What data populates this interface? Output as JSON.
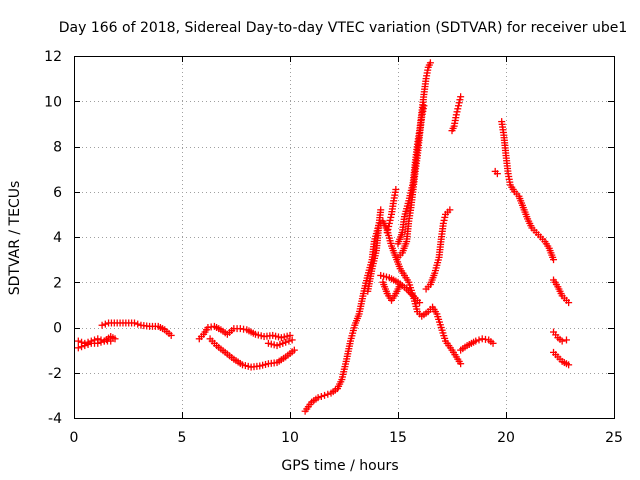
{
  "chart_data": {
    "type": "scatter",
    "title": "Day 166 of 2018, Sidereal Day-to-day VTEC variation (SDTVAR) for receiver ube1",
    "xlabel": "GPS time / hours",
    "ylabel": "SDTVAR / TECUs",
    "xlim": [
      0,
      25
    ],
    "ylim": [
      -4,
      12
    ],
    "xticks": [
      0,
      5,
      10,
      15,
      20,
      25
    ],
    "yticks": [
      -4,
      -2,
      0,
      2,
      4,
      6,
      8,
      10,
      12
    ],
    "grid": true,
    "marker": "plus",
    "color": "#ff0000",
    "series": [
      {
        "name": "s1",
        "points": [
          [
            0.2,
            -0.6
          ],
          [
            0.5,
            -0.7
          ],
          [
            0.8,
            -0.6
          ],
          [
            1.1,
            -0.5
          ],
          [
            1.4,
            -0.6
          ],
          [
            1.7,
            -0.4
          ],
          [
            1.9,
            -0.5
          ]
        ]
      },
      {
        "name": "s2",
        "points": [
          [
            0.2,
            -0.9
          ],
          [
            0.5,
            -0.8
          ],
          [
            0.8,
            -0.7
          ],
          [
            1.1,
            -0.7
          ],
          [
            1.4,
            -0.6
          ],
          [
            1.7,
            -0.6
          ]
        ]
      },
      {
        "name": "s3",
        "points": [
          [
            1.3,
            0.1
          ],
          [
            1.6,
            0.2
          ],
          [
            2.0,
            0.2
          ],
          [
            2.4,
            0.2
          ],
          [
            2.8,
            0.2
          ],
          [
            3.1,
            0.1
          ],
          [
            3.5,
            0.05
          ],
          [
            3.9,
            0.05
          ],
          [
            4.2,
            -0.1
          ],
          [
            4.5,
            -0.35
          ]
        ]
      },
      {
        "name": "s4",
        "points": [
          [
            5.8,
            -0.5
          ],
          [
            6.0,
            -0.3
          ],
          [
            6.2,
            0.0
          ],
          [
            6.5,
            0.05
          ],
          [
            6.8,
            -0.1
          ],
          [
            7.1,
            -0.3
          ],
          [
            7.4,
            -0.05
          ],
          [
            7.7,
            -0.05
          ],
          [
            8.0,
            -0.1
          ],
          [
            8.4,
            -0.3
          ],
          [
            8.8,
            -0.4
          ],
          [
            9.2,
            -0.35
          ],
          [
            9.6,
            -0.45
          ],
          [
            10.0,
            -0.35
          ]
        ]
      },
      {
        "name": "s5",
        "points": [
          [
            6.3,
            -0.5
          ],
          [
            6.6,
            -0.8
          ],
          [
            7.0,
            -1.1
          ],
          [
            7.4,
            -1.4
          ],
          [
            7.8,
            -1.65
          ],
          [
            8.2,
            -1.75
          ],
          [
            8.6,
            -1.7
          ],
          [
            9.0,
            -1.6
          ],
          [
            9.4,
            -1.55
          ],
          [
            9.8,
            -1.3
          ],
          [
            10.2,
            -1.0
          ]
        ]
      },
      {
        "name": "s6",
        "points": [
          [
            9.0,
            -0.7
          ],
          [
            9.4,
            -0.8
          ],
          [
            9.8,
            -0.65
          ],
          [
            10.1,
            -0.55
          ]
        ]
      },
      {
        "name": "s7",
        "points": [
          [
            10.7,
            -3.7
          ],
          [
            11.0,
            -3.3
          ],
          [
            11.3,
            -3.1
          ],
          [
            11.6,
            -3.0
          ],
          [
            11.9,
            -2.9
          ],
          [
            12.2,
            -2.7
          ],
          [
            12.4,
            -2.3
          ],
          [
            12.6,
            -1.5
          ],
          [
            12.8,
            -0.6
          ],
          [
            13.0,
            0.1
          ],
          [
            13.2,
            0.6
          ],
          [
            13.4,
            1.5
          ],
          [
            13.6,
            2.3
          ],
          [
            13.8,
            3.0
          ],
          [
            13.9,
            3.8
          ],
          [
            14.1,
            4.5
          ],
          [
            14.3,
            4.7
          ],
          [
            14.5,
            4.3
          ],
          [
            14.7,
            3.6
          ],
          [
            14.9,
            3.1
          ],
          [
            15.1,
            2.6
          ],
          [
            15.3,
            2.3
          ],
          [
            15.5,
            2.0
          ],
          [
            15.7,
            1.4
          ],
          [
            15.9,
            0.7
          ],
          [
            16.1,
            0.5
          ],
          [
            16.4,
            0.7
          ],
          [
            16.6,
            0.9
          ],
          [
            16.8,
            0.6
          ],
          [
            17.0,
            0.0
          ],
          [
            17.2,
            -0.6
          ],
          [
            17.5,
            -1.0
          ],
          [
            17.7,
            -1.3
          ],
          [
            17.9,
            -1.6
          ]
        ]
      },
      {
        "name": "s8",
        "points": [
          [
            13.6,
            1.6
          ],
          [
            13.8,
            2.6
          ],
          [
            14.0,
            3.4
          ],
          [
            14.1,
            4.4
          ],
          [
            14.2,
            5.2
          ]
        ]
      },
      {
        "name": "s9",
        "points": [
          [
            14.2,
            2.3
          ],
          [
            14.6,
            2.2
          ],
          [
            15.0,
            2.0
          ],
          [
            15.4,
            1.7
          ],
          [
            15.8,
            1.3
          ],
          [
            16.0,
            1.1
          ]
        ]
      },
      {
        "name": "s10",
        "points": [
          [
            14.3,
            2.0
          ],
          [
            14.5,
            1.5
          ],
          [
            14.7,
            1.2
          ],
          [
            14.9,
            1.5
          ],
          [
            15.1,
            1.9
          ]
        ]
      },
      {
        "name": "s11",
        "points": [
          [
            14.5,
            4.2
          ],
          [
            14.6,
            4.6
          ],
          [
            14.7,
            5.0
          ],
          [
            14.8,
            5.6
          ],
          [
            14.9,
            6.1
          ]
        ]
      },
      {
        "name": "s12",
        "points": [
          [
            15.0,
            3.7
          ],
          [
            15.2,
            4.2
          ],
          [
            15.3,
            4.9
          ],
          [
            15.5,
            5.6
          ],
          [
            15.7,
            6.4
          ],
          [
            15.8,
            7.3
          ],
          [
            15.9,
            8.1
          ],
          [
            16.0,
            8.7
          ],
          [
            16.1,
            9.5
          ],
          [
            16.2,
            10.3
          ],
          [
            16.3,
            11.0
          ],
          [
            16.4,
            11.5
          ],
          [
            16.5,
            11.7
          ]
        ]
      },
      {
        "name": "s13",
        "points": [
          [
            15.0,
            3.1
          ],
          [
            15.2,
            3.3
          ],
          [
            15.4,
            3.8
          ],
          [
            15.5,
            4.7
          ],
          [
            15.6,
            5.3
          ],
          [
            15.7,
            6.1
          ],
          [
            15.8,
            6.9
          ],
          [
            15.9,
            7.6
          ],
          [
            16.0,
            8.5
          ],
          [
            16.1,
            9.3
          ],
          [
            16.2,
            9.8
          ]
        ]
      },
      {
        "name": "s14",
        "points": [
          [
            16.3,
            1.7
          ],
          [
            16.5,
            1.9
          ],
          [
            16.7,
            2.4
          ],
          [
            16.9,
            3.1
          ],
          [
            17.0,
            3.9
          ],
          [
            17.1,
            4.6
          ],
          [
            17.2,
            5.0
          ],
          [
            17.4,
            5.2
          ]
        ]
      },
      {
        "name": "s15",
        "points": [
          [
            17.5,
            8.7
          ],
          [
            17.6,
            8.9
          ],
          [
            17.7,
            9.4
          ],
          [
            17.8,
            9.8
          ],
          [
            17.9,
            10.2
          ]
        ]
      },
      {
        "name": "s16",
        "points": [
          [
            17.9,
            -1.0
          ],
          [
            18.2,
            -0.8
          ],
          [
            18.6,
            -0.6
          ],
          [
            18.9,
            -0.5
          ],
          [
            19.2,
            -0.55
          ],
          [
            19.4,
            -0.7
          ]
        ]
      },
      {
        "name": "s17",
        "points": [
          [
            19.5,
            6.9
          ],
          [
            19.6,
            6.8
          ]
        ]
      },
      {
        "name": "s18",
        "points": [
          [
            19.8,
            9.1
          ],
          [
            19.9,
            8.5
          ],
          [
            20.0,
            7.6
          ],
          [
            20.1,
            6.8
          ],
          [
            20.2,
            6.3
          ],
          [
            20.4,
            6.0
          ],
          [
            20.6,
            5.8
          ],
          [
            20.8,
            5.3
          ],
          [
            21.0,
            4.8
          ],
          [
            21.2,
            4.4
          ],
          [
            21.4,
            4.2
          ],
          [
            21.6,
            4.0
          ],
          [
            21.8,
            3.8
          ],
          [
            22.0,
            3.5
          ],
          [
            22.2,
            3.0
          ]
        ]
      },
      {
        "name": "s19",
        "points": [
          [
            22.2,
            2.1
          ],
          [
            22.4,
            1.8
          ],
          [
            22.6,
            1.4
          ],
          [
            22.8,
            1.2
          ],
          [
            22.9,
            1.1
          ]
        ]
      },
      {
        "name": "s20",
        "points": [
          [
            22.2,
            -0.2
          ],
          [
            22.4,
            -0.45
          ],
          [
            22.6,
            -0.6
          ],
          [
            22.8,
            -0.55
          ]
        ]
      },
      {
        "name": "s21",
        "points": [
          [
            22.2,
            -1.1
          ],
          [
            22.4,
            -1.3
          ],
          [
            22.6,
            -1.5
          ],
          [
            22.8,
            -1.6
          ],
          [
            22.9,
            -1.65
          ]
        ]
      }
    ]
  }
}
